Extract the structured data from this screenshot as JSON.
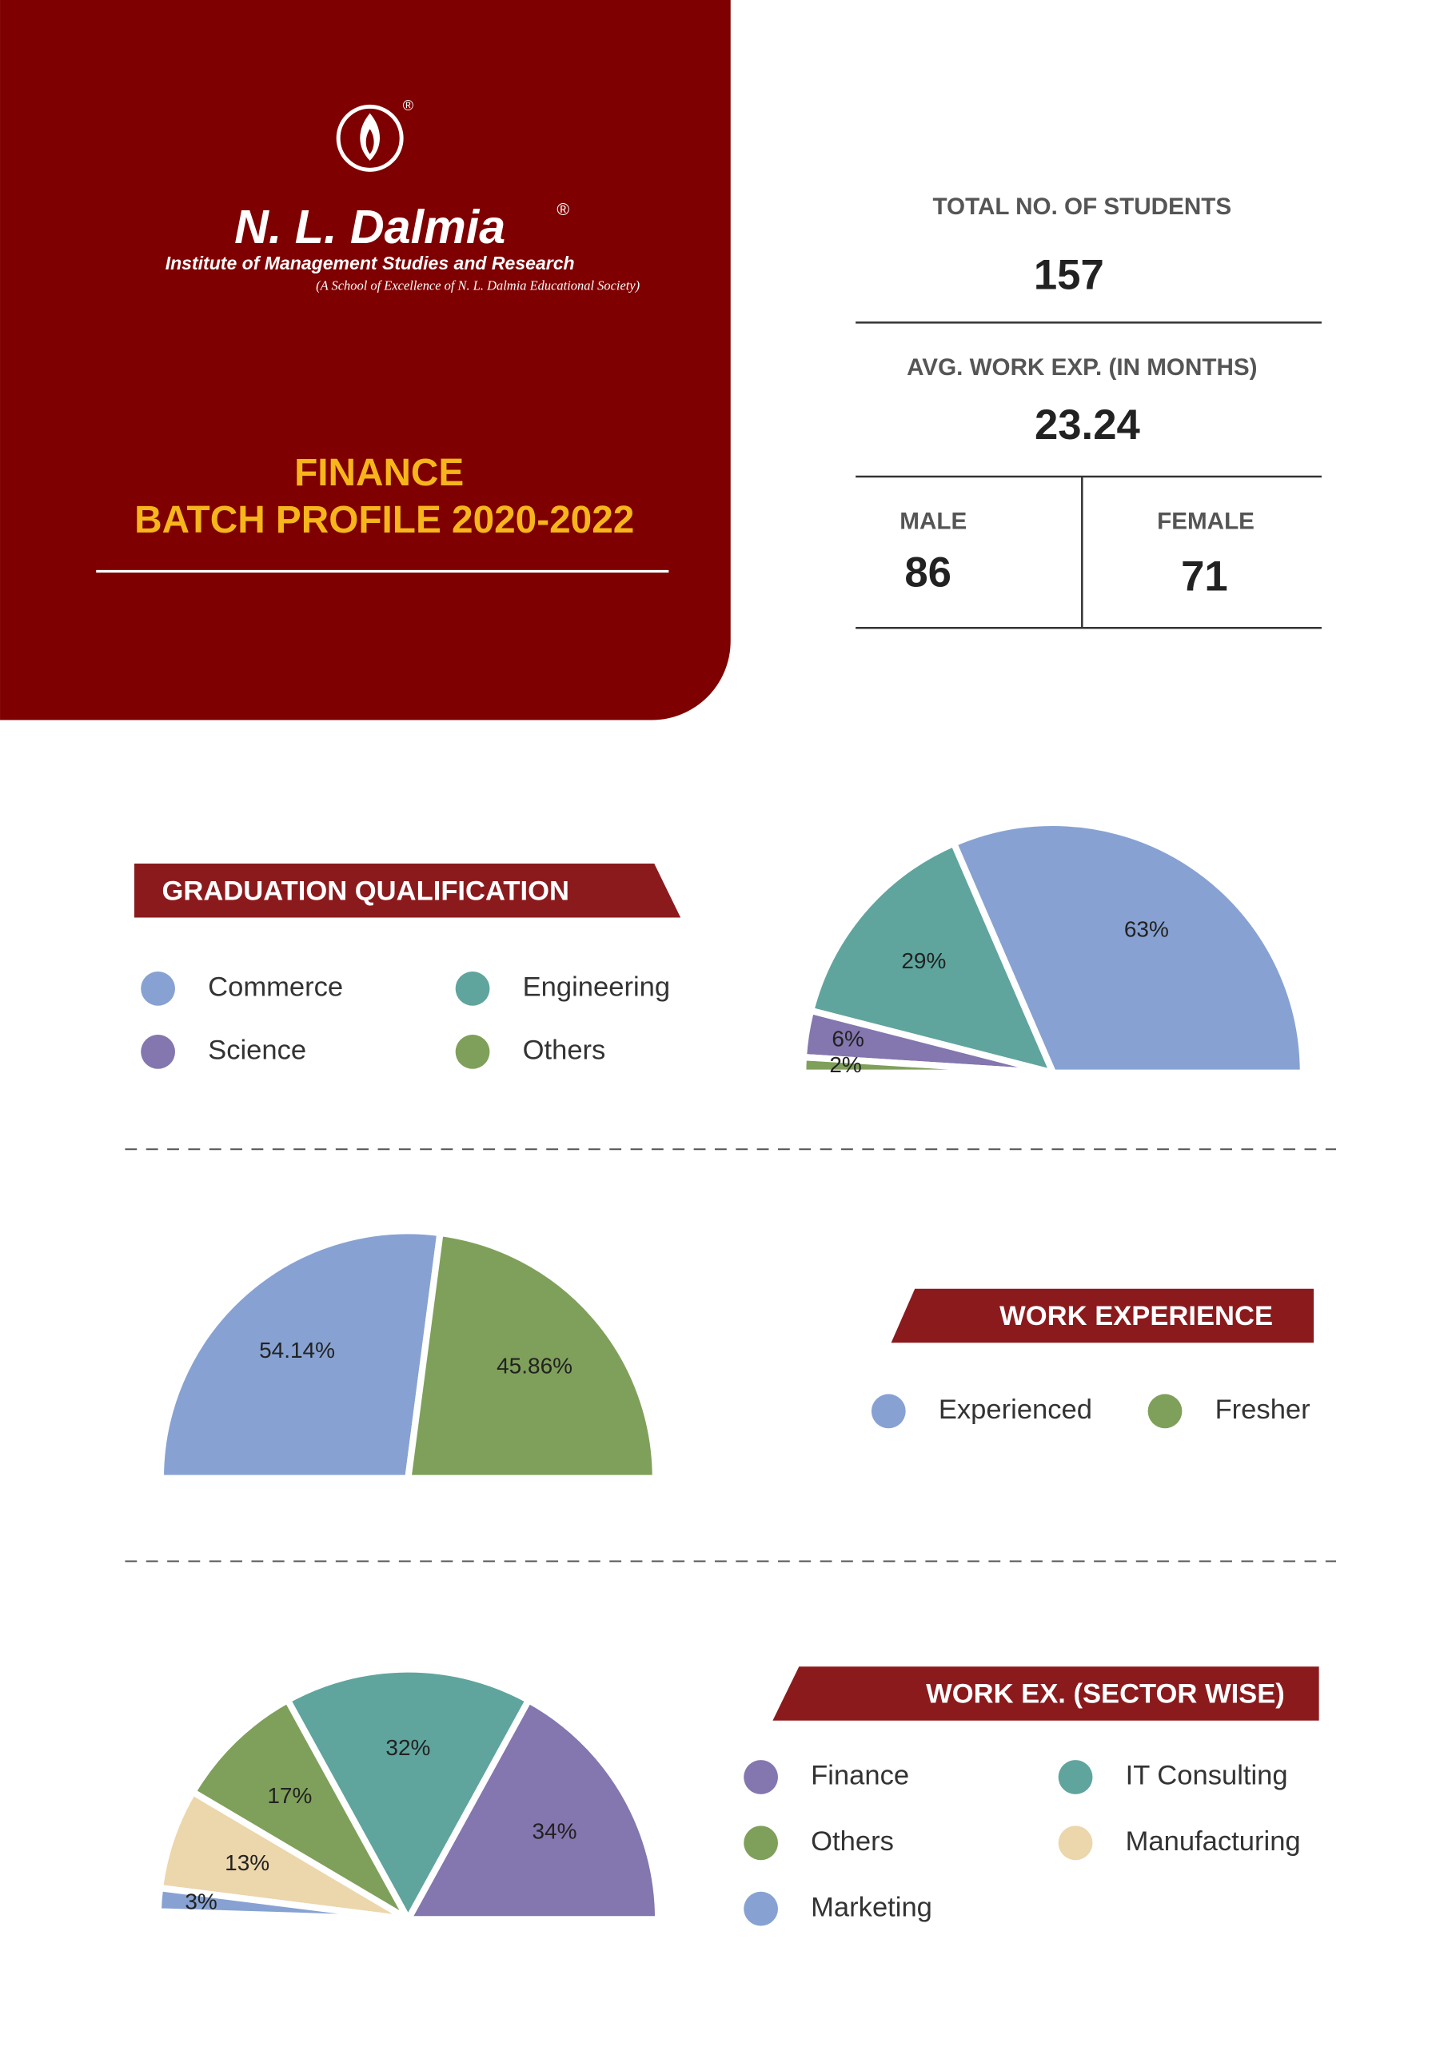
{
  "header": {
    "logo_name": "N. L. Dalmia",
    "institute": "Institute of Management Studies and Research",
    "society": "(A School of Excellence of N. L. Dalmia Educational Society)",
    "title_line1": "FINANCE",
    "title_line2": "BATCH PROFILE 2020-2022"
  },
  "stats": {
    "total_label": "TOTAL NO. OF STUDENTS",
    "total": 157,
    "work_exp_label": "AVG. WORK EXP. (IN MONTHS)",
    "work_exp": 23.24,
    "male_label": "MALE",
    "male": 86,
    "female_label": "FEMALE",
    "female": 71
  },
  "chart_data": [
    {
      "type": "pie",
      "title": "GRADUATION QUALIFICATION",
      "direction": "counterclockwise",
      "categories": [
        "Commerce",
        "Engineering",
        "Science",
        "Others"
      ],
      "values": [
        63,
        29,
        6,
        2
      ],
      "value_labels": [
        "63%",
        "29%",
        "6%",
        "2%"
      ],
      "colors": [
        "#87a2d2",
        "#5fa59d",
        "#8476ae",
        "#7fa05a"
      ]
    },
    {
      "type": "pie",
      "title": "WORK EXPERIENCE",
      "direction": "clockwise",
      "categories": [
        "Experienced",
        "Fresher"
      ],
      "values": [
        54.14,
        45.86
      ],
      "value_labels": [
        "54.14%",
        "45.86%"
      ],
      "colors": [
        "#87a2d2",
        "#7fa05a"
      ]
    },
    {
      "type": "pie",
      "title": "WORK EX. (SECTOR WISE)",
      "direction": "counterclockwise",
      "categories": [
        "Finance",
        "IT Consulting",
        "Others",
        "Manufacturing",
        "Marketing"
      ],
      "values": [
        34,
        32,
        17,
        13,
        3
      ],
      "value_labels": [
        "34%",
        "32%",
        "17%",
        "13%",
        "3%"
      ],
      "colors": [
        "#8476ae",
        "#5fa59d",
        "#7fa05a",
        "#ecd6ab",
        "#87a2d2"
      ]
    }
  ]
}
